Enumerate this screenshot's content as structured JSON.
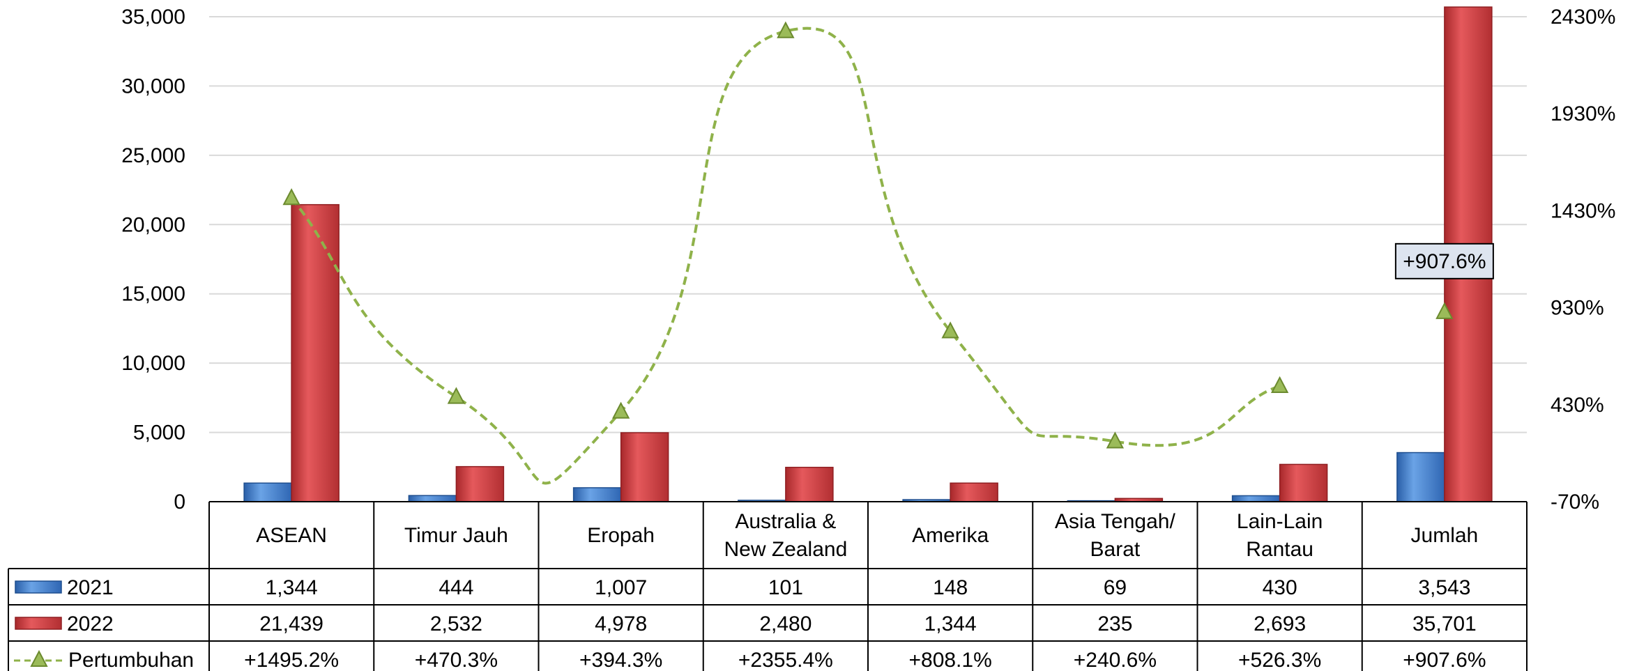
{
  "chart_data": {
    "type": "bar",
    "categories": [
      "ASEAN",
      "Timur Jauh",
      "Eropah",
      "Australia & New Zealand",
      "Amerika",
      "Asia Tengah/ Barat",
      "Lain-Lain Rantau",
      "Jumlah"
    ],
    "category_lines": [
      [
        "ASEAN"
      ],
      [
        "Timur Jauh"
      ],
      [
        "Eropah"
      ],
      [
        "Australia &",
        "New Zealand"
      ],
      [
        "Amerika"
      ],
      [
        "Asia Tengah/",
        "Barat"
      ],
      [
        "Lain-Lain",
        "Rantau"
      ],
      [
        "Jumlah"
      ]
    ],
    "series": [
      {
        "name": "2021",
        "axis": "left",
        "color": "#3a78c8",
        "values": [
          1344,
          444,
          1007,
          101,
          148,
          69,
          430,
          3543
        ],
        "labels": [
          "1,344",
          "444",
          "1,007",
          "101",
          "148",
          "69",
          "430",
          "3,543"
        ]
      },
      {
        "name": "2022",
        "axis": "left",
        "color": "#c8373a",
        "values": [
          21439,
          2532,
          4978,
          2480,
          1344,
          235,
          2693,
          35701
        ],
        "labels": [
          "21,439",
          "2,532",
          "4,978",
          "2,480",
          "1,344",
          "235",
          "2,693",
          "35,701"
        ]
      }
    ],
    "growth": {
      "name": "Pertumbuhan",
      "axis": "right",
      "type": "line",
      "style": "dashed-smooth",
      "marker": "triangle",
      "color": "#8fb24a",
      "values": [
        1495.2,
        470.3,
        394.3,
        2355.4,
        808.1,
        240.6,
        526.3,
        907.6
      ],
      "labels": [
        "+1495.2%",
        "+470.3%",
        "+394.3%",
        "+2355.4%",
        "+808.1%",
        "+240.6%",
        "+526.3%",
        "+907.6%"
      ],
      "line_break_before_last": true
    },
    "y_left": {
      "min": 0,
      "max": 35000,
      "ticks": [
        0,
        5000,
        10000,
        15000,
        20000,
        25000,
        30000,
        35000
      ],
      "tick_labels": [
        "0",
        "5,000",
        "10,000",
        "15,000",
        "20,000",
        "25,000",
        "30,000",
        "35,000"
      ]
    },
    "y_right": {
      "min": -70,
      "max": 2430,
      "ticks": [
        -70,
        430,
        930,
        1430,
        1930,
        2430
      ],
      "tick_labels": [
        "-70%",
        "430%",
        "930%",
        "1430%",
        "1930%",
        "2430%"
      ]
    },
    "callout": {
      "category_index": 7,
      "text": "+907.6%"
    },
    "grid": true,
    "data_table": true,
    "title": ""
  }
}
